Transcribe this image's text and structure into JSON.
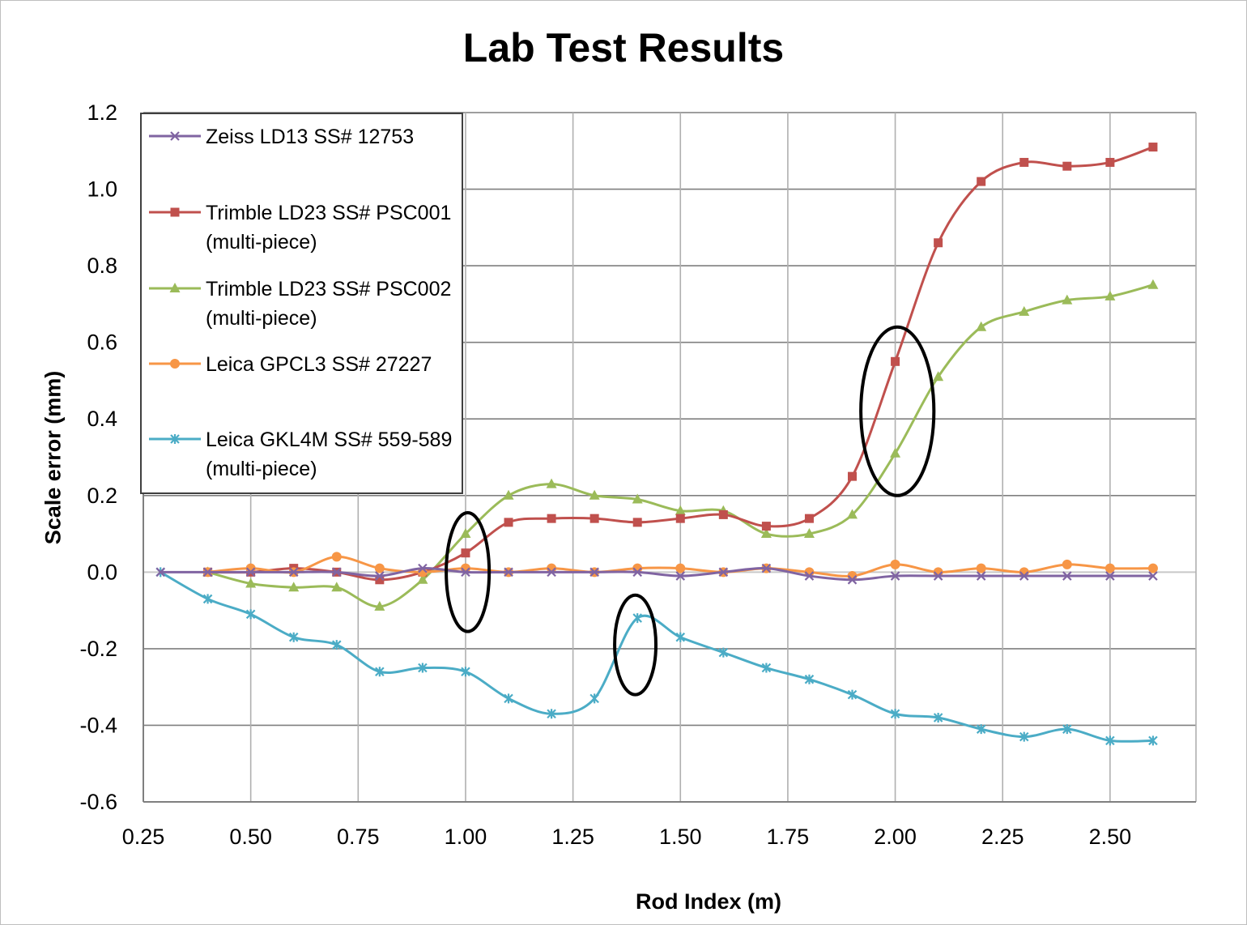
{
  "chart_data": {
    "type": "line",
    "title": "Lab Test Results",
    "xlabel": "Rod Index (m)",
    "ylabel": "Scale error (mm)",
    "xlim": [
      0.25,
      2.7
    ],
    "ylim": [
      -0.6,
      1.2
    ],
    "xticks": [
      0.25,
      0.5,
      0.75,
      1.0,
      1.25,
      1.5,
      1.75,
      2.0,
      2.25,
      2.5
    ],
    "xtick_labels": [
      "0.25",
      "0.50",
      "0.75",
      "1.00",
      "1.25",
      "1.50",
      "1.75",
      "2.00",
      "2.25",
      "2.50"
    ],
    "yticks": [
      -0.6,
      -0.4,
      -0.2,
      0.0,
      0.2,
      0.4,
      0.6,
      0.8,
      1.0,
      1.2
    ],
    "ytick_labels": [
      "-0.6",
      "-0.4",
      "-0.2",
      "0.0",
      "0.2",
      "0.4",
      "0.6",
      "0.8",
      "1.0",
      "1.2"
    ],
    "grid": true,
    "legend_position": "top-left",
    "series": [
      {
        "name": "Zeiss LD13  SS# 12753",
        "color": "#8064a2",
        "marker": "x",
        "x": [
          0.29,
          0.4,
          0.5,
          0.6,
          0.7,
          0.8,
          0.9,
          1.0,
          1.1,
          1.2,
          1.3,
          1.4,
          1.5,
          1.6,
          1.7,
          1.8,
          1.9,
          2.0,
          2.1,
          2.2,
          2.3,
          2.4,
          2.5,
          2.6
        ],
        "values": [
          0.0,
          0.0,
          0.0,
          0.0,
          0.0,
          -0.01,
          0.01,
          0.0,
          0.0,
          0.0,
          0.0,
          0.0,
          -0.01,
          0.0,
          0.01,
          -0.01,
          -0.02,
          -0.01,
          -0.01,
          -0.01,
          -0.01,
          -0.01,
          -0.01,
          -0.01
        ]
      },
      {
        "name": "Trimble LD23 SS# PSC001",
        "name_line2": "(multi-piece)",
        "color": "#c0504d",
        "marker": "square",
        "x": [
          0.4,
          0.5,
          0.6,
          0.7,
          0.8,
          0.9,
          1.0,
          1.1,
          1.2,
          1.3,
          1.4,
          1.5,
          1.6,
          1.7,
          1.8,
          1.9,
          2.0,
          2.1,
          2.2,
          2.3,
          2.4,
          2.5,
          2.6
        ],
        "values": [
          0.0,
          0.0,
          0.01,
          0.0,
          -0.02,
          0.0,
          0.05,
          0.13,
          0.14,
          0.14,
          0.13,
          0.14,
          0.15,
          0.12,
          0.14,
          0.25,
          0.55,
          0.86,
          1.02,
          1.07,
          1.06,
          1.07,
          1.11
        ]
      },
      {
        "name": "Trimble LD23 SS# PSC002",
        "name_line2": "(multi-piece)",
        "color": "#9bbb59",
        "marker": "triangle",
        "x": [
          0.4,
          0.5,
          0.6,
          0.7,
          0.8,
          0.9,
          1.0,
          1.1,
          1.2,
          1.3,
          1.4,
          1.5,
          1.6,
          1.7,
          1.8,
          1.9,
          2.0,
          2.1,
          2.2,
          2.3,
          2.4,
          2.5,
          2.6
        ],
        "values": [
          0.0,
          -0.03,
          -0.04,
          -0.04,
          -0.09,
          -0.02,
          0.1,
          0.2,
          0.23,
          0.2,
          0.19,
          0.16,
          0.16,
          0.1,
          0.1,
          0.15,
          0.31,
          0.51,
          0.64,
          0.68,
          0.71,
          0.72,
          0.75
        ]
      },
      {
        "name": "Leica GPCL3 SS# 27227",
        "color": "#f79646",
        "marker": "circle",
        "x": [
          0.4,
          0.5,
          0.6,
          0.7,
          0.8,
          0.9,
          1.0,
          1.1,
          1.2,
          1.3,
          1.4,
          1.5,
          1.6,
          1.7,
          1.8,
          1.9,
          2.0,
          2.1,
          2.2,
          2.3,
          2.4,
          2.5,
          2.6
        ],
        "values": [
          0.0,
          0.01,
          0.0,
          0.04,
          0.01,
          0.0,
          0.01,
          0.0,
          0.01,
          0.0,
          0.01,
          0.01,
          0.0,
          0.01,
          0.0,
          -0.01,
          0.02,
          0.0,
          0.01,
          0.0,
          0.02,
          0.01,
          0.01
        ]
      },
      {
        "name": "Leica GKL4M SS# 559-589",
        "name_line2": "(multi-piece)",
        "color": "#4bacc6",
        "marker": "star",
        "x": [
          0.29,
          0.4,
          0.5,
          0.6,
          0.7,
          0.8,
          0.9,
          1.0,
          1.1,
          1.2,
          1.3,
          1.4,
          1.5,
          1.6,
          1.7,
          1.8,
          1.9,
          2.0,
          2.1,
          2.2,
          2.3,
          2.4,
          2.5,
          2.6
        ],
        "values": [
          0.0,
          -0.07,
          -0.11,
          -0.17,
          -0.19,
          -0.26,
          -0.25,
          -0.26,
          -0.33,
          -0.37,
          -0.33,
          -0.12,
          -0.17,
          -0.21,
          -0.25,
          -0.28,
          -0.32,
          -0.37,
          -0.38,
          -0.41,
          -0.43,
          -0.41,
          -0.44,
          -0.44
        ]
      }
    ],
    "annotations": [
      {
        "type": "ellipse",
        "center": [
          1.005,
          0.0
        ],
        "radius_x": 0.05,
        "radius_y": 0.155
      },
      {
        "type": "ellipse",
        "center": [
          1.395,
          -0.19
        ],
        "radius_x": 0.048,
        "radius_y": 0.13
      },
      {
        "type": "ellipse",
        "center": [
          2.005,
          0.42
        ],
        "radius_x": 0.085,
        "radius_y": 0.22
      }
    ]
  }
}
